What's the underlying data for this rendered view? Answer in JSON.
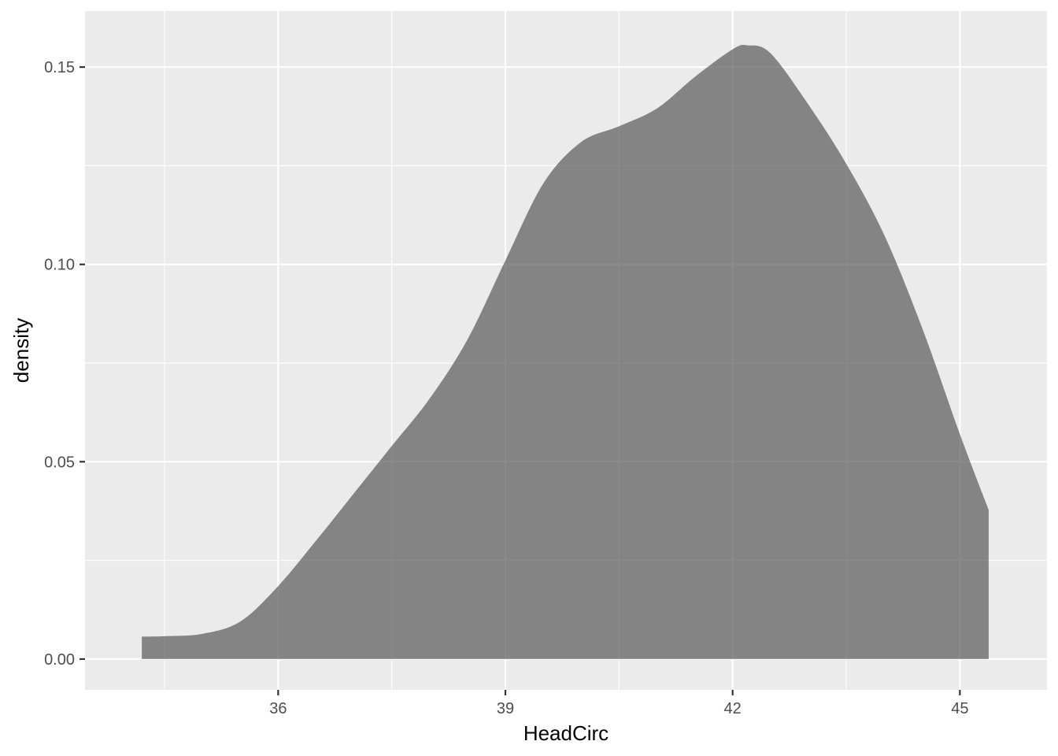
{
  "chart_data": {
    "type": "area",
    "title": "",
    "xlabel": "HeadCirc",
    "ylabel": "density",
    "xlim": [
      33.45,
      46.15
    ],
    "ylim": [
      -0.0078,
      0.1642
    ],
    "x_ticks": [
      36,
      39,
      42,
      45
    ],
    "x_tick_labels": [
      "36",
      "39",
      "42",
      "45"
    ],
    "x_minor_ticks": [
      34.5,
      37.5,
      40.5,
      43.5
    ],
    "y_ticks": [
      0.0,
      0.05,
      0.1,
      0.15
    ],
    "y_tick_labels": [
      "0.00",
      "0.05",
      "0.10",
      "0.15"
    ],
    "y_minor_ticks": [
      0.025,
      0.075,
      0.125
    ],
    "grid": true,
    "legend": "none",
    "series": [
      {
        "x": [
          34.2,
          34.5,
          35.0,
          35.5,
          36.0,
          36.5,
          37.0,
          37.5,
          38.0,
          38.5,
          39.0,
          39.5,
          40.0,
          40.5,
          41.0,
          41.5,
          42.0,
          42.2,
          42.5,
          43.0,
          43.5,
          44.0,
          44.5,
          45.0,
          45.38
        ],
        "y": [
          0.0057,
          0.0058,
          0.0064,
          0.0095,
          0.0185,
          0.03,
          0.042,
          0.054,
          0.066,
          0.081,
          0.101,
          0.1205,
          0.131,
          0.135,
          0.1395,
          0.1475,
          0.1545,
          0.1555,
          0.1535,
          0.1405,
          0.1255,
          0.1075,
          0.084,
          0.057,
          0.0378
        ]
      }
    ],
    "colors": {
      "panel_background": "#ebebeb",
      "grid_major": "#ffffff",
      "fill": "#595959",
      "fill_opacity": 0.7,
      "tick_label": "#4d4d4d",
      "axis_title": "#000000"
    }
  }
}
